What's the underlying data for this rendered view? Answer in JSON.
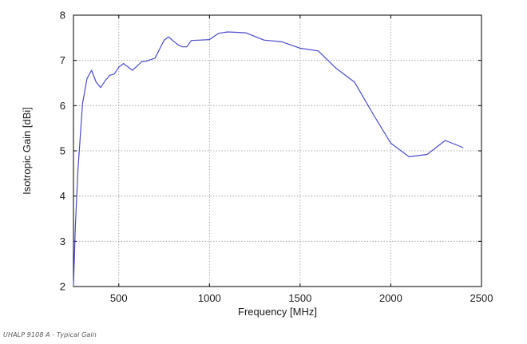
{
  "caption": "UHALP 9108 A - Typical Gain",
  "chart_data": {
    "type": "line",
    "xlabel": "Frequency [MHz]",
    "ylabel": "Isotropic Gain [dBi]",
    "xlim": [
      250,
      2500
    ],
    "ylim": [
      2,
      8
    ],
    "xticks": [
      500,
      1000,
      1500,
      2000,
      2500
    ],
    "yticks": [
      2,
      3,
      4,
      5,
      6,
      7,
      8
    ],
    "grid": true,
    "series_color": "#4a4acc",
    "series": [
      {
        "x": [
          250,
          260,
          275,
          300,
          325,
          350,
          375,
          400,
          425,
          450,
          475,
          500,
          525,
          550,
          575,
          600,
          625,
          650,
          700,
          725,
          750,
          775,
          800,
          825,
          850,
          875,
          900,
          950,
          1000,
          1050,
          1100,
          1150,
          1200,
          1300,
          1400,
          1500,
          1600,
          1700,
          1800,
          1900,
          2000,
          2100,
          2200,
          2300,
          2400
        ],
        "values": [
          2.0,
          3.3,
          4.6,
          6.05,
          6.6,
          6.78,
          6.52,
          6.4,
          6.55,
          6.67,
          6.7,
          6.85,
          6.93,
          6.86,
          6.78,
          6.87,
          6.97,
          6.98,
          7.05,
          7.25,
          7.45,
          7.52,
          7.43,
          7.35,
          7.3,
          7.3,
          7.44,
          7.45,
          7.46,
          7.6,
          7.63,
          7.62,
          7.61,
          7.45,
          7.41,
          7.27,
          7.21,
          6.82,
          6.52,
          5.83,
          5.17,
          4.87,
          4.92,
          5.23,
          5.07
        ]
      }
    ]
  }
}
